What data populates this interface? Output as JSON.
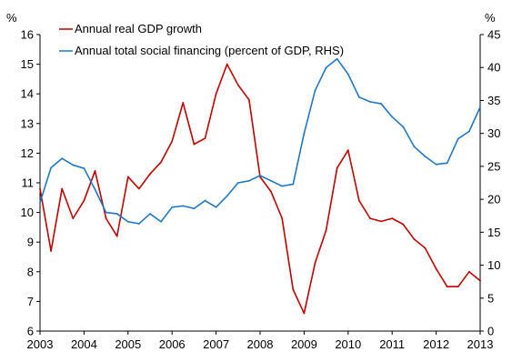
{
  "chart_data": {
    "type": "line",
    "title": "",
    "xlabel": "",
    "left_unit": "%",
    "right_unit": "%",
    "x_ticks": [
      "2003",
      "2004",
      "2005",
      "2006",
      "2007",
      "2008",
      "2009",
      "2010",
      "2011",
      "2012",
      "2013"
    ],
    "xlim": [
      2003,
      2013
    ],
    "y_left": {
      "ylim": [
        6,
        16
      ],
      "ticks": [
        "6",
        "7",
        "8",
        "9",
        "10",
        "11",
        "12",
        "13",
        "14",
        "15",
        "16"
      ]
    },
    "y_right": {
      "ylim": [
        0,
        45
      ],
      "ticks": [
        "0",
        "5",
        "10",
        "15",
        "20",
        "25",
        "30",
        "35",
        "40",
        "45"
      ]
    },
    "grid": false,
    "legend_position": "top-left",
    "series": [
      {
        "name": "Annual real GDP growth",
        "axis": "left",
        "color": "#C00000",
        "x": [
          2003.0,
          2003.25,
          2003.5,
          2003.75,
          2004.0,
          2004.25,
          2004.5,
          2004.75,
          2005.0,
          2005.25,
          2005.5,
          2005.75,
          2006.0,
          2006.25,
          2006.5,
          2006.75,
          2007.0,
          2007.25,
          2007.5,
          2007.75,
          2008.0,
          2008.25,
          2008.5,
          2008.75,
          2009.0,
          2009.25,
          2009.5,
          2009.75,
          2010.0,
          2010.25,
          2010.5,
          2010.75,
          2011.0,
          2011.25,
          2011.5,
          2011.75,
          2012.0,
          2012.25,
          2012.5,
          2012.75,
          2013.0
        ],
        "values": [
          10.8,
          8.7,
          10.8,
          9.8,
          10.4,
          11.4,
          9.8,
          9.2,
          11.2,
          10.8,
          11.3,
          11.7,
          12.4,
          13.7,
          12.3,
          12.5,
          14.0,
          15.0,
          14.3,
          13.8,
          11.2,
          10.7,
          9.8,
          7.4,
          6.6,
          8.3,
          9.4,
          11.5,
          12.1,
          10.4,
          9.8,
          9.7,
          9.8,
          9.6,
          9.1,
          8.8,
          8.1,
          7.5,
          7.5,
          8.0,
          7.7
        ]
      },
      {
        "name": "Annual total social financing (percent of GDP, RHS)",
        "axis": "right",
        "color": "#1F77C4",
        "x": [
          2003.0,
          2003.25,
          2003.5,
          2003.75,
          2004.0,
          2004.25,
          2004.5,
          2004.75,
          2005.0,
          2005.25,
          2005.5,
          2005.75,
          2006.0,
          2006.25,
          2006.5,
          2006.75,
          2007.0,
          2007.25,
          2007.5,
          2007.75,
          2008.0,
          2008.25,
          2008.5,
          2008.75,
          2009.0,
          2009.25,
          2009.5,
          2009.75,
          2010.0,
          2010.25,
          2010.5,
          2010.75,
          2011.0,
          2011.25,
          2011.5,
          2011.75,
          2012.0,
          2012.25,
          2012.5,
          2012.75,
          2013.0
        ],
        "values": [
          19.5,
          24.8,
          26.2,
          25.2,
          24.7,
          21.5,
          18.0,
          17.8,
          16.6,
          16.3,
          17.8,
          16.6,
          18.8,
          19.0,
          18.6,
          19.8,
          18.8,
          20.5,
          22.5,
          22.8,
          23.6,
          22.8,
          22.0,
          22.3,
          30.0,
          36.5,
          40.0,
          41.3,
          39.0,
          35.5,
          34.8,
          34.5,
          32.5,
          31.0,
          28.0,
          26.5,
          25.3,
          25.5,
          29.2,
          30.3,
          34.0
        ]
      }
    ]
  }
}
